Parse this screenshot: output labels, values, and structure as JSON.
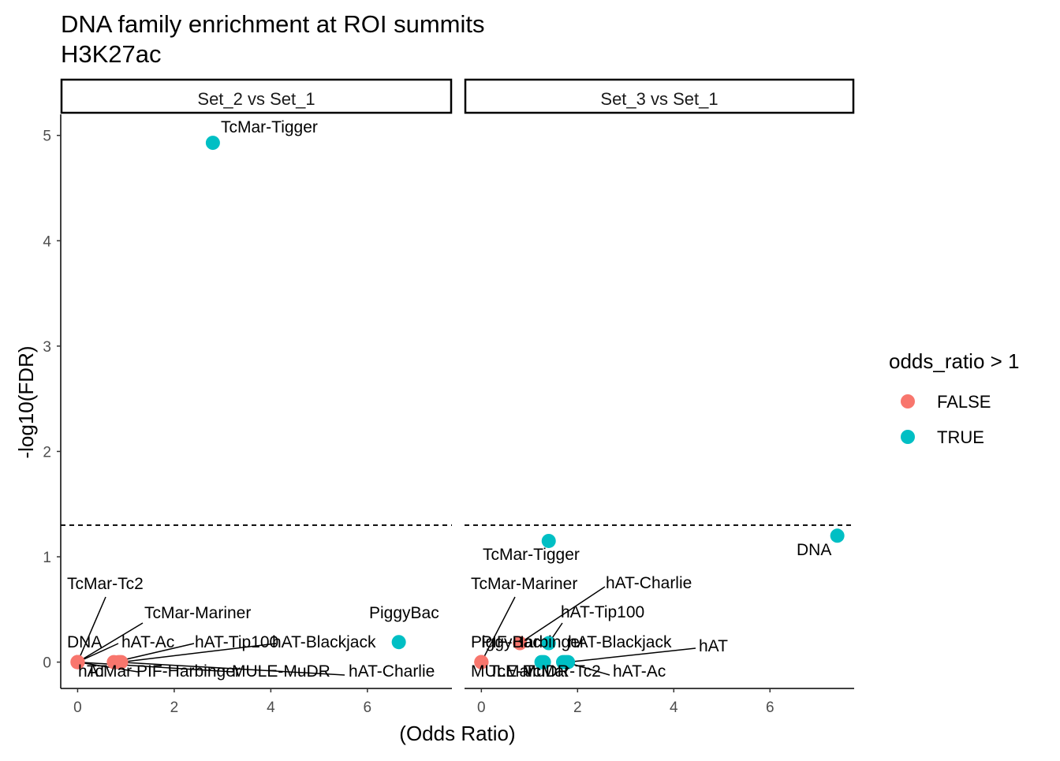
{
  "title_line1": "DNA family enrichment at ROI summits",
  "title_line2": "H3K27ac",
  "x_axis_title": "(Odds Ratio)",
  "y_axis_title": "-log10(FDR)",
  "legend": {
    "title": "odds_ratio > 1",
    "items": [
      {
        "label": "FALSE",
        "color": "#F8766D"
      },
      {
        "label": "TRUE",
        "color": "#00BFC4"
      }
    ]
  },
  "chart_data": {
    "type": "scatter",
    "facets": [
      {
        "strip": "Set_2 vs Set_1",
        "points": [
          {
            "label": "TcMar-Tigger",
            "x": 2.8,
            "y": 4.93,
            "odds_gt_1": true
          },
          {
            "label": "PiggyBac",
            "x": 6.65,
            "y": 0.19,
            "odds_gt_1": true
          },
          {
            "label": "DNA",
            "x": 0.0,
            "y": 0.0,
            "odds_gt_1": false
          },
          {
            "label": "TcMar-Tc2",
            "x": 0.0,
            "y": 0.0,
            "odds_gt_1": false
          },
          {
            "label": "TcMar-Mariner",
            "x": 0.0,
            "y": 0.0,
            "odds_gt_1": false
          },
          {
            "label": "hAT-Ac",
            "x": 0.0,
            "y": 0.0,
            "odds_gt_1": false
          },
          {
            "label": "hAT-Tip100",
            "x": 0.75,
            "y": 0.0,
            "odds_gt_1": false
          },
          {
            "label": "hAT-Blackjack",
            "x": 0.9,
            "y": 0.0,
            "odds_gt_1": false
          },
          {
            "label": "hAT",
            "x": 0.0,
            "y": 0.0,
            "odds_gt_1": false
          },
          {
            "label": "TcMar",
            "x": 0.0,
            "y": 0.0,
            "odds_gt_1": false
          },
          {
            "label": "PIF-Harbinger",
            "x": 0.0,
            "y": 0.0,
            "odds_gt_1": false
          },
          {
            "label": "MULE-MuDR",
            "x": 0.0,
            "y": 0.0,
            "odds_gt_1": false
          },
          {
            "label": "hAT-Charlie",
            "x": 0.85,
            "y": 0.0,
            "odds_gt_1": false
          }
        ]
      },
      {
        "strip": "Set_3 vs Set_1",
        "points": [
          {
            "label": "TcMar-Tigger",
            "x": 1.4,
            "y": 1.15,
            "odds_gt_1": true
          },
          {
            "label": "DNA",
            "x": 7.4,
            "y": 1.2,
            "odds_gt_1": true
          },
          {
            "label": "TcMar-Mariner",
            "x": 0.0,
            "y": 0.0,
            "odds_gt_1": false
          },
          {
            "label": "hAT-Charlie",
            "x": 0.8,
            "y": 0.18,
            "odds_gt_1": false
          },
          {
            "label": "hAT-Tip100",
            "x": 1.4,
            "y": 0.18,
            "odds_gt_1": true
          },
          {
            "label": "PiggyBac",
            "x": 0.0,
            "y": 0.0,
            "odds_gt_1": false
          },
          {
            "label": "PIF-Harbinger",
            "x": 0.0,
            "y": 0.0,
            "odds_gt_1": false
          },
          {
            "label": "hAT-Blackjack",
            "x": 1.7,
            "y": 0.0,
            "odds_gt_1": true
          },
          {
            "label": "hAT",
            "x": 1.8,
            "y": 0.0,
            "odds_gt_1": true
          },
          {
            "label": "MULE-MuDR",
            "x": 0.0,
            "y": 0.0,
            "odds_gt_1": false
          },
          {
            "label": "TcMar",
            "x": 1.25,
            "y": 0.0,
            "odds_gt_1": true
          },
          {
            "label": "TcMar-Tc2",
            "x": 1.3,
            "y": 0.0,
            "odds_gt_1": true
          },
          {
            "label": "hAT-Ac",
            "x": 1.75,
            "y": 0.0,
            "odds_gt_1": true
          }
        ]
      }
    ],
    "x_ticks": [
      "0",
      "2",
      "4",
      "6"
    ],
    "y_ticks": [
      "0",
      "1",
      "2",
      "3",
      "4",
      "5"
    ],
    "xlim": [
      -0.35,
      7.75
    ],
    "ylim": [
      -0.25,
      5.2
    ],
    "hline_y": 1.3,
    "hline_style": "dashed",
    "grid": false
  }
}
